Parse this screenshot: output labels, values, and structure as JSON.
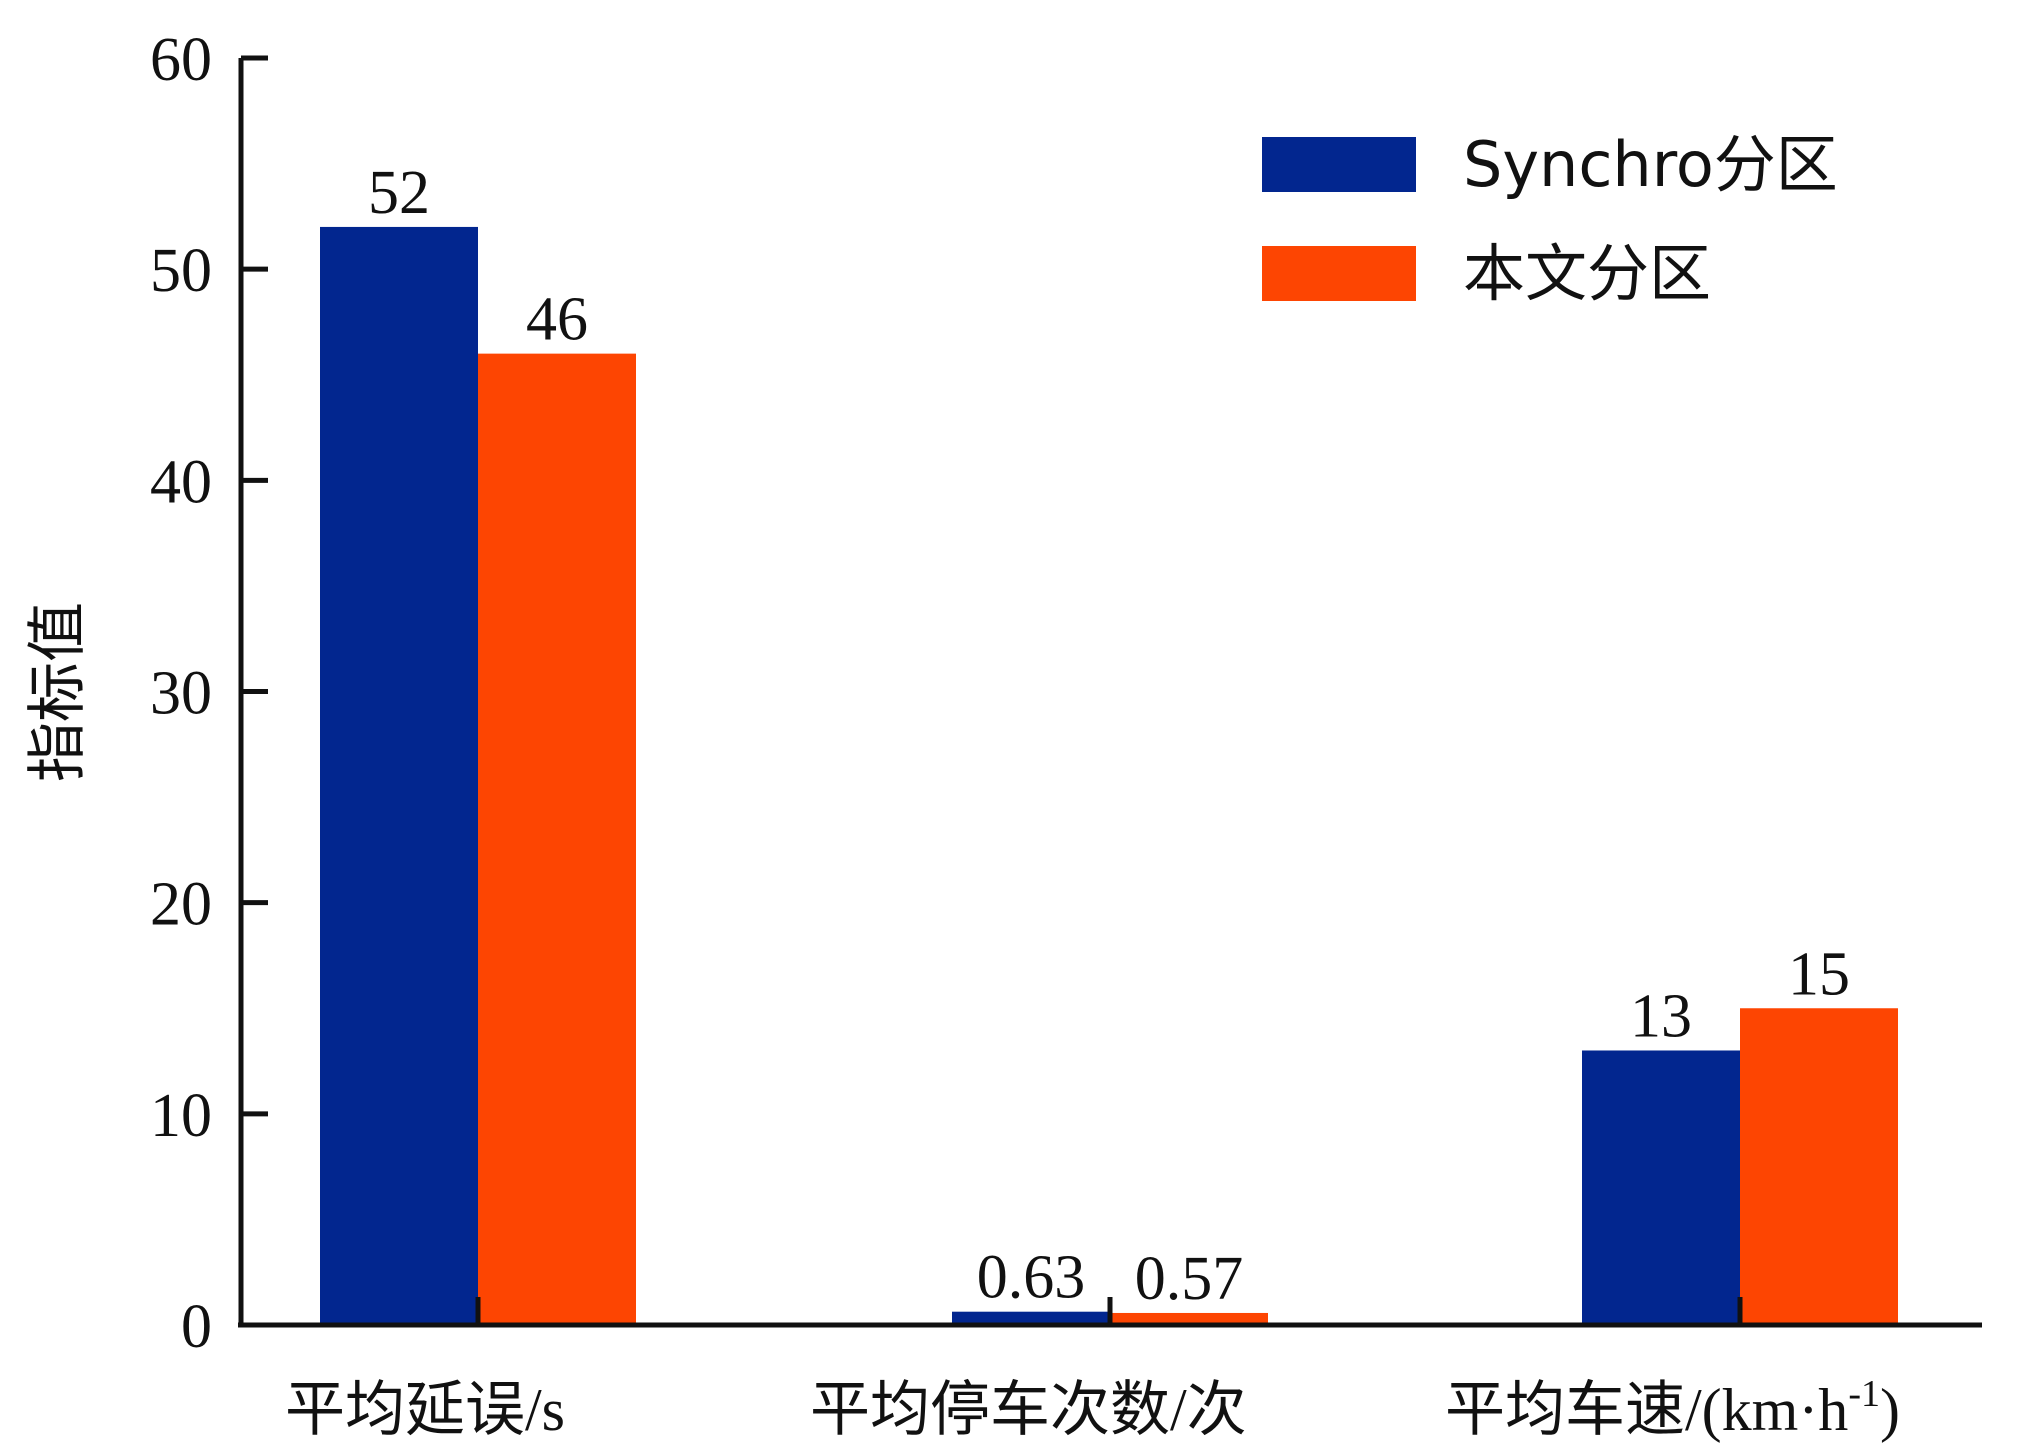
{
  "chart_data": {
    "type": "bar",
    "title": "",
    "xlabel": "",
    "ylabel": "指标值",
    "ylim": [
      0,
      60
    ],
    "yticks": [
      0,
      10,
      20,
      30,
      40,
      50,
      60
    ],
    "categories": [
      "平均延误/s",
      "平均停车次数/次",
      "平均车速/(km·h-1)"
    ],
    "series": [
      {
        "name": "Synchro分区",
        "color": "#02268f",
        "values": [
          52,
          0.63,
          13
        ],
        "labels": [
          "52",
          "0.63",
          "13"
        ]
      },
      {
        "name": "本文分区",
        "color": "#fd4502",
        "values": [
          46,
          0.57,
          15
        ],
        "labels": [
          "46",
          "0.57",
          "15"
        ]
      }
    ],
    "grid": false,
    "legend": "top-right"
  }
}
